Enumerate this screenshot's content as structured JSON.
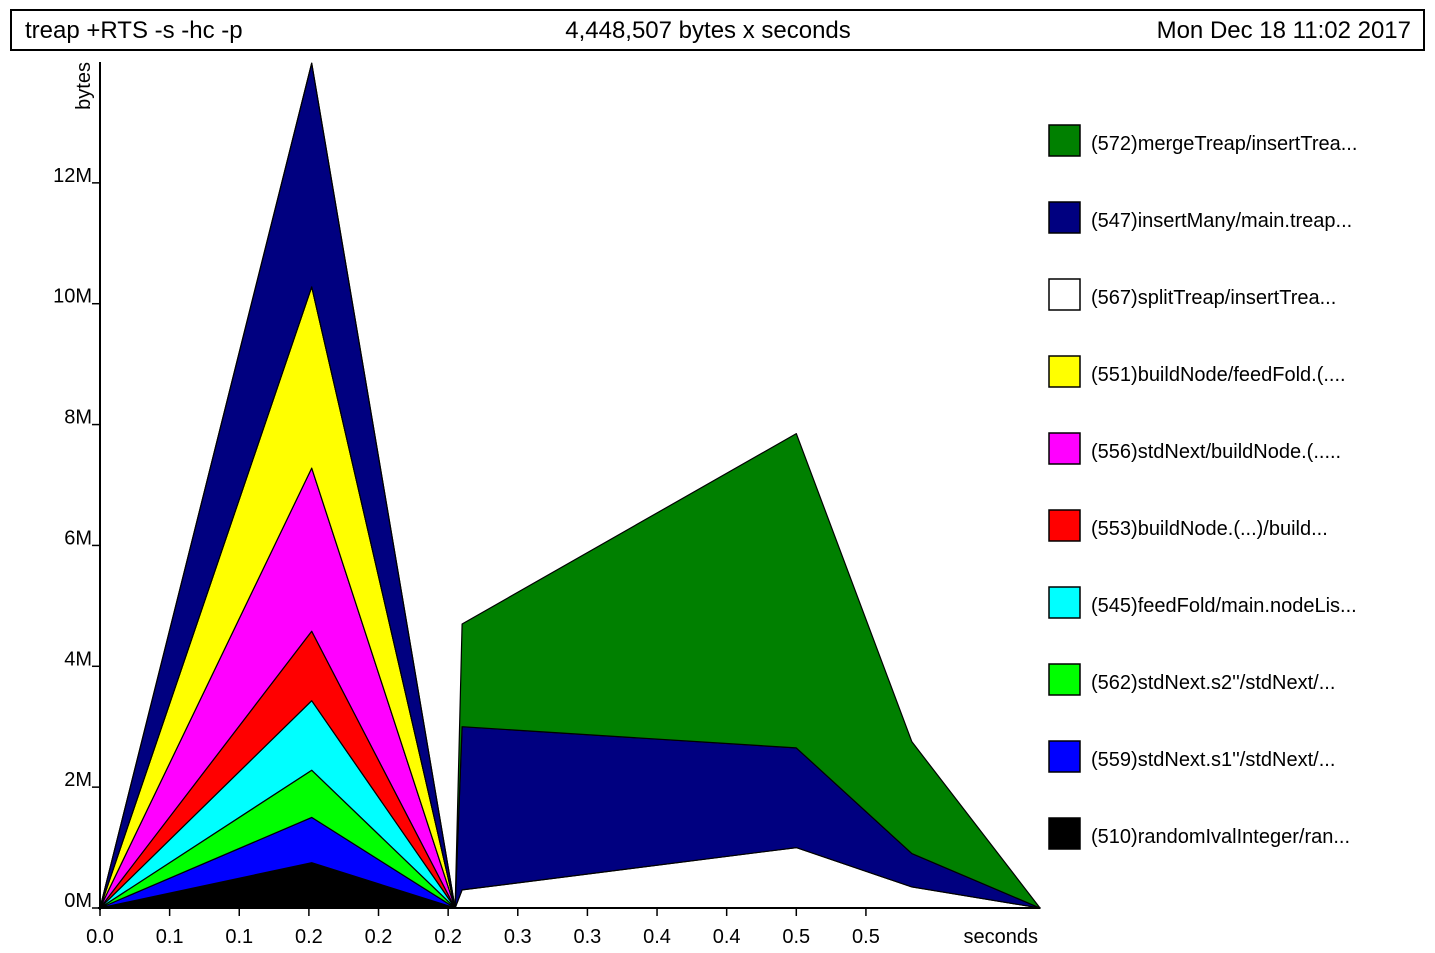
{
  "header": {
    "job": "treap +RTS -s -hc -p",
    "total": "4,448,507 bytes x seconds",
    "date": "Mon Dec 18 11:02 2017"
  },
  "chart_data": {
    "type": "area",
    "stacked": true,
    "title": "treap +RTS -s -hc -p",
    "xlabel": "seconds",
    "ylabel": "bytes",
    "xlim": [
      0.0,
      0.675
    ],
    "ylim": [
      0,
      14000000
    ],
    "grid": false,
    "legend_position": "right",
    "x_tick_values": [
      0.0,
      0.05,
      0.1,
      0.15,
      0.2,
      0.25,
      0.3,
      0.35,
      0.4,
      0.45,
      0.5,
      0.55
    ],
    "x_tick_labels": [
      "0.0",
      "0.1",
      "0.1",
      "0.2",
      "0.2",
      "0.2",
      "0.3",
      "0.3",
      "0.4",
      "0.4",
      "0.5",
      "0.5"
    ],
    "y_tick_values": [
      0,
      2000000,
      4000000,
      6000000,
      8000000,
      10000000,
      12000000
    ],
    "y_tick_labels": [
      "0M",
      "2M",
      "4M",
      "6M",
      "8M",
      "10M",
      "12M"
    ],
    "x": [
      0.0,
      0.152,
      0.255,
      0.26,
      0.5,
      0.583,
      0.675
    ],
    "series": [
      {
        "name": "(510)randomIvalInteger/ran...",
        "color": "#000000",
        "values": [
          0,
          750000,
          0,
          0,
          0,
          0,
          0
        ]
      },
      {
        "name": "(559)stdNext.s1''/stdNext/...",
        "color": "#0000ff",
        "values": [
          0,
          750000,
          0,
          0,
          0,
          0,
          0
        ]
      },
      {
        "name": "(562)stdNext.s2''/stdNext/...",
        "color": "#00ff00",
        "values": [
          0,
          780000,
          0,
          0,
          0,
          0,
          0
        ]
      },
      {
        "name": "(545)feedFold/main.nodeLis...",
        "color": "#00ffff",
        "values": [
          0,
          1150000,
          0,
          0,
          0,
          0,
          0
        ]
      },
      {
        "name": "(553)buildNode.(...)/build...",
        "color": "#ff0000",
        "values": [
          0,
          1150000,
          0,
          0,
          0,
          0,
          0
        ]
      },
      {
        "name": "(556)stdNext/buildNode.(.....",
        "color": "#ff00ff",
        "values": [
          0,
          2700000,
          0,
          0,
          0,
          0,
          0
        ]
      },
      {
        "name": "(551)buildNode/feedFold.(....",
        "color": "#ffff00",
        "values": [
          0,
          3000000,
          0,
          0,
          0,
          0,
          0
        ]
      },
      {
        "name": "(567)splitTreap/insertTrea...",
        "color": "#ffffff",
        "values": [
          0,
          0,
          0,
          300000,
          1000000,
          350000,
          0
        ]
      },
      {
        "name": "(547)insertMany/main.treap...",
        "color": "#000080",
        "values": [
          0,
          3700000,
          0,
          2700000,
          1650000,
          550000,
          0
        ]
      },
      {
        "name": "(572)mergeTreap/insertTrea...",
        "color": "#008000",
        "values": [
          0,
          0,
          0,
          1700000,
          5200000,
          1850000,
          0
        ]
      }
    ]
  }
}
